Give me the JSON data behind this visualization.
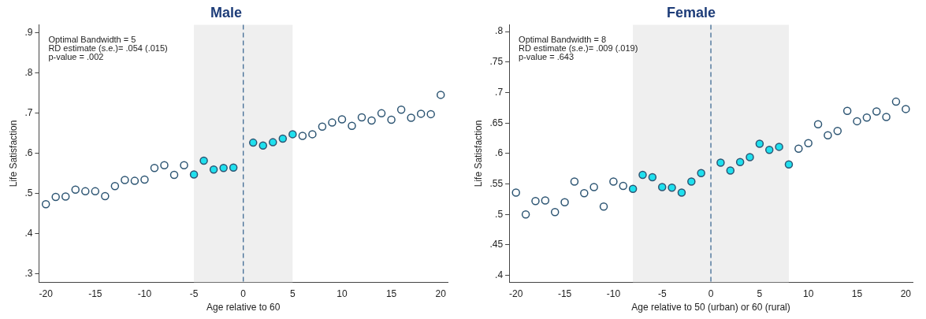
{
  "chart_data": [
    {
      "type": "scatter",
      "title": "Male",
      "xlabel": "Age relative to 60",
      "ylabel": "Life Satisfaction",
      "annotations": [
        "Optimal Bandwidth = 5",
        "RD estimate (s.e.)= .054 (.015)",
        "p-value = .002"
      ],
      "xlim": [
        -20.7,
        20.7
      ],
      "xticks": [
        -20,
        -15,
        -10,
        -5,
        0,
        5,
        10,
        15,
        20
      ],
      "ylim": [
        0.28,
        0.92
      ],
      "yticks": [
        {
          "value": 0.3,
          "label": ".3"
        },
        {
          "value": 0.4,
          "label": ".4"
        },
        {
          "value": 0.5,
          "label": ".5"
        },
        {
          "value": 0.6,
          "label": ".6"
        },
        {
          "value": 0.7,
          "label": ".7"
        },
        {
          "value": 0.8,
          "label": ".8"
        },
        {
          "value": 0.9,
          "label": ".9"
        }
      ],
      "grid": false,
      "legend": false,
      "marker": "circle",
      "bands": [
        {
          "axis": "x",
          "from": -5,
          "to": 5,
          "color": "#efefef"
        }
      ],
      "ref_lines": [
        {
          "axis": "x",
          "value": 0,
          "color": "#3f6a94",
          "line_style": "dashed"
        }
      ],
      "series": [
        {
          "color": "#ffffff",
          "x": [
            -20,
            -19,
            -18,
            -17,
            -16,
            -15,
            -14,
            -13,
            -12,
            -11,
            -10,
            -9,
            -8,
            -7,
            -6,
            6,
            7,
            8,
            9,
            10,
            11,
            12,
            13,
            14,
            15,
            16,
            17,
            18,
            19,
            20
          ],
          "values": [
            0.474,
            0.492,
            0.493,
            0.51,
            0.506,
            0.506,
            0.494,
            0.519,
            0.534,
            0.532,
            0.535,
            0.564,
            0.571,
            0.547,
            0.571,
            0.644,
            0.648,
            0.667,
            0.677,
            0.685,
            0.669,
            0.69,
            0.682,
            0.7,
            0.684,
            0.709,
            0.689,
            0.699,
            0.698,
            0.746
          ]
        },
        {
          "color": "#1fe0ee",
          "x": [
            -5,
            -4,
            -3,
            -2,
            -1,
            1,
            2,
            3,
            4,
            5
          ],
          "values": [
            0.548,
            0.582,
            0.56,
            0.564,
            0.565,
            0.627,
            0.62,
            0.628,
            0.637,
            0.648
          ]
        }
      ]
    },
    {
      "type": "scatter",
      "title": "Female",
      "xlabel": "Age relative to 50 (urban) or 60 (rural)",
      "ylabel": "Life Satisfaction",
      "annotations": [
        "Optimal Bandwidth = 8",
        "RD estimate (s.e.)= .009 (.019)",
        "p-value = .643"
      ],
      "xlim": [
        -20.7,
        20.7
      ],
      "xticks": [
        -20,
        -15,
        -10,
        -5,
        0,
        5,
        10,
        15,
        20
      ],
      "ylim": [
        0.389,
        0.811
      ],
      "yticks": [
        {
          "value": 0.4,
          "label": ".4"
        },
        {
          "value": 0.45,
          "label": ".45"
        },
        {
          "value": 0.5,
          "label": ".5"
        },
        {
          "value": 0.55,
          "label": ".55"
        },
        {
          "value": 0.6,
          "label": ".6"
        },
        {
          "value": 0.65,
          "label": ".65"
        },
        {
          "value": 0.7,
          "label": ".7"
        },
        {
          "value": 0.75,
          "label": ".75"
        },
        {
          "value": 0.8,
          "label": ".8"
        }
      ],
      "grid": false,
      "legend": false,
      "marker": "circle",
      "bands": [
        {
          "axis": "x",
          "from": -8,
          "to": 8,
          "color": "#efefef"
        }
      ],
      "ref_lines": [
        {
          "axis": "x",
          "value": 0,
          "color": "#3f6a94",
          "line_style": "dashed"
        }
      ],
      "series": [
        {
          "color": "#ffffff",
          "x": [
            -20,
            -19,
            -18,
            -17,
            -16,
            -15,
            -14,
            -13,
            -12,
            -11,
            -10,
            -9,
            9,
            10,
            11,
            12,
            13,
            14,
            15,
            16,
            17,
            18,
            19,
            20
          ],
          "values": [
            0.536,
            0.5,
            0.522,
            0.523,
            0.504,
            0.52,
            0.554,
            0.535,
            0.545,
            0.513,
            0.554,
            0.547,
            0.608,
            0.617,
            0.648,
            0.63,
            0.637,
            0.67,
            0.653,
            0.659,
            0.669,
            0.66,
            0.685,
            0.673
          ]
        },
        {
          "color": "#1fe0ee",
          "x": [
            -8,
            -7,
            -6,
            -5,
            -4,
            -3,
            -2,
            -1,
            1,
            2,
            3,
            4,
            5,
            6,
            7,
            8
          ],
          "values": [
            0.542,
            0.565,
            0.561,
            0.545,
            0.544,
            0.536,
            0.554,
            0.568,
            0.585,
            0.572,
            0.586,
            0.594,
            0.616,
            0.606,
            0.611,
            0.582
          ]
        }
      ]
    }
  ]
}
